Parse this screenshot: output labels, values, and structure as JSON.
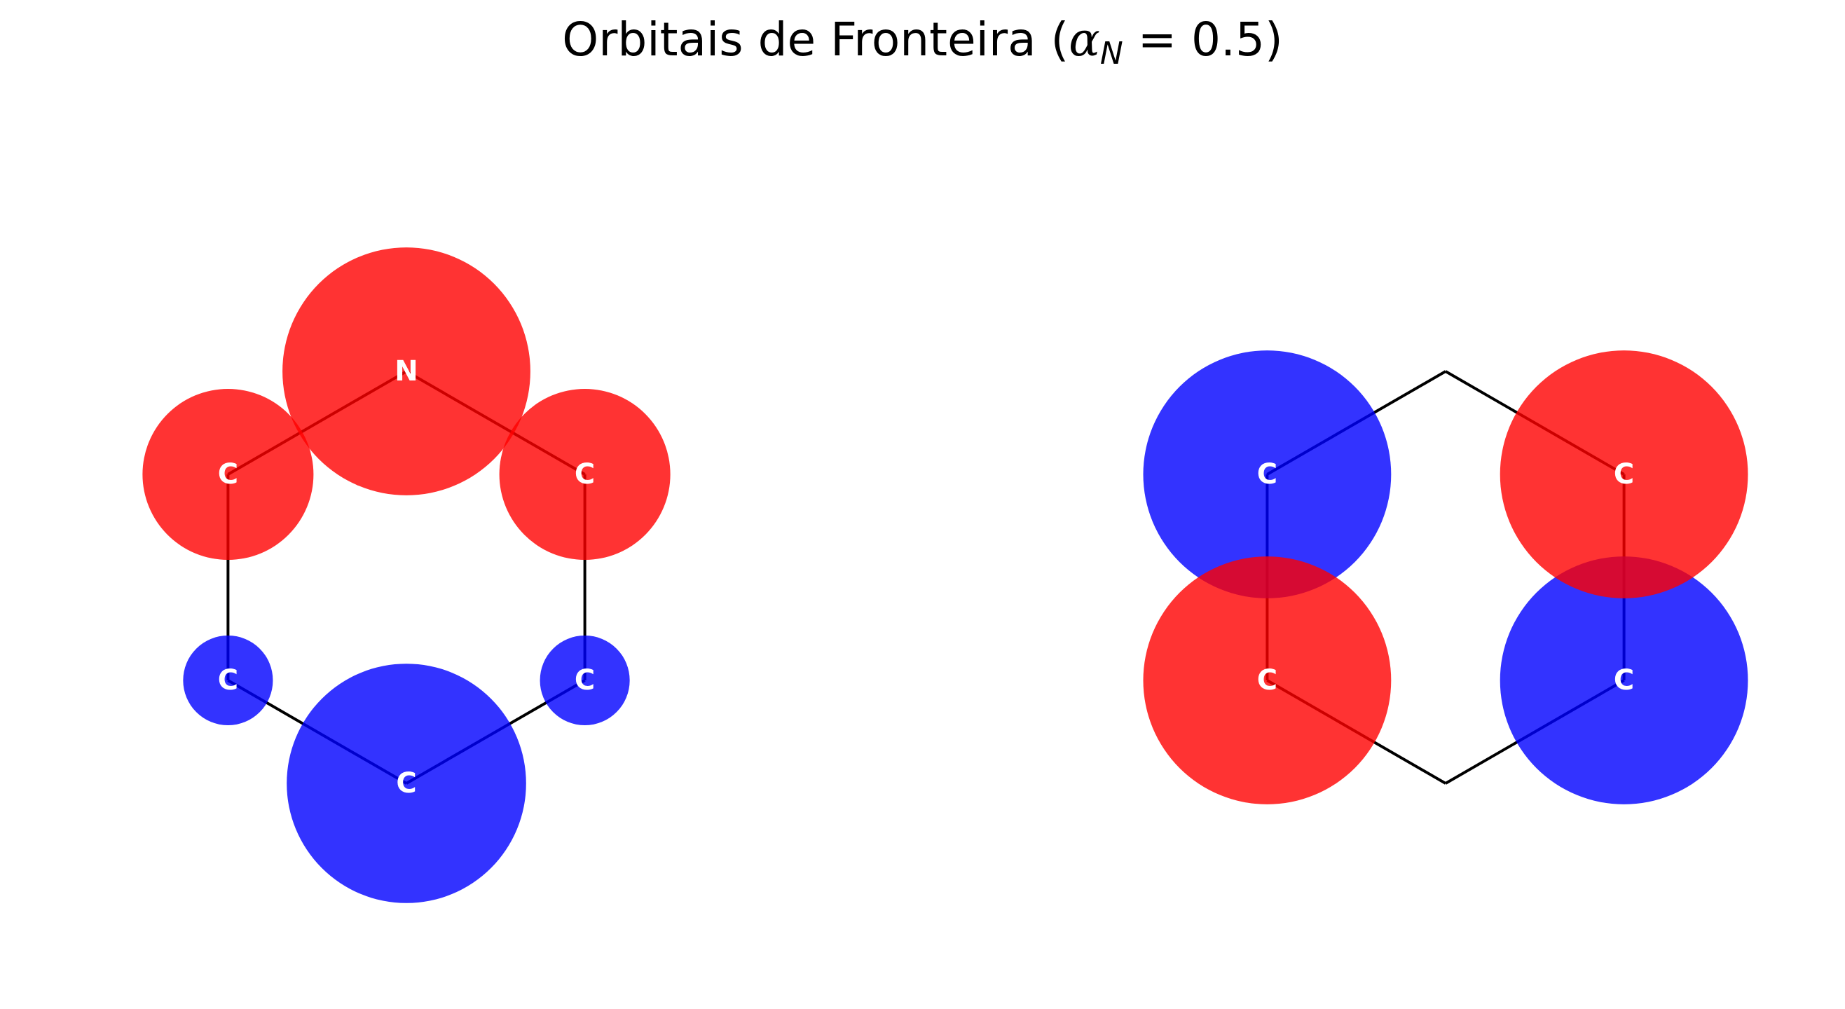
{
  "title": {
    "text": "Orbitais de Fronteira (",
    "alpha": "α",
    "subscript": "N",
    "equals": " = 0.5",
    "close": ")"
  },
  "colors": {
    "positive_lobe": "#ff0000",
    "negative_lobe": "#0000ff",
    "bond": "#000000",
    "label": "#ffffff"
  },
  "molecules": [
    {
      "atoms": [
        {
          "label": "N",
          "lobe": "positive",
          "coefficient": 0.58
        },
        {
          "label": "C",
          "lobe": "positive",
          "coefficient": 0.4
        },
        {
          "label": "C",
          "lobe": "negative",
          "coefficient": 0.21
        },
        {
          "label": "C",
          "lobe": "negative",
          "coefficient": 0.56
        },
        {
          "label": "C",
          "lobe": "negative",
          "coefficient": 0.21
        },
        {
          "label": "C",
          "lobe": "positive",
          "coefficient": 0.4
        }
      ]
    },
    {
      "atoms": [
        {
          "label": "",
          "lobe": "none",
          "coefficient": 0.0
        },
        {
          "label": "C",
          "lobe": "negative",
          "coefficient": 0.58
        },
        {
          "label": "C",
          "lobe": "positive",
          "coefficient": 0.58
        },
        {
          "label": "",
          "lobe": "none",
          "coefficient": 0.0
        },
        {
          "label": "C",
          "lobe": "negative",
          "coefficient": 0.58
        },
        {
          "label": "C",
          "lobe": "positive",
          "coefficient": 0.58
        }
      ]
    }
  ]
}
